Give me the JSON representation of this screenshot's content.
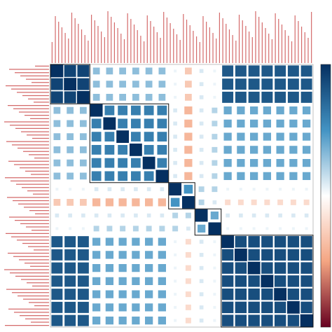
{
  "chart_data": {
    "type": "heatmap",
    "zlim": [
      -1,
      1
    ],
    "colorscale": [
      "#67001f",
      "#f4a582",
      "#ffffff",
      "#4393c3",
      "#053061"
    ],
    "values": [
      [
        1,
        0.9,
        0.9,
        0.3,
        0.3,
        0.3,
        0.3,
        0.3,
        0.3,
        0.05,
        -0.3,
        0.1,
        0.05,
        0.8,
        0.8,
        0.8,
        0.8,
        0.8,
        0.8,
        0.8
      ],
      [
        0.9,
        1,
        0.9,
        0.3,
        0.3,
        0.3,
        0.3,
        0.3,
        0.3,
        0.05,
        -0.3,
        0.1,
        0.05,
        0.8,
        0.8,
        0.8,
        0.8,
        0.8,
        0.8,
        0.8
      ],
      [
        0.9,
        0.9,
        1,
        0.3,
        0.3,
        0.3,
        0.3,
        0.3,
        0.3,
        0.05,
        -0.3,
        0.1,
        0.05,
        0.8,
        0.8,
        0.8,
        0.8,
        0.8,
        0.8,
        0.8
      ],
      [
        0.3,
        0.3,
        0.3,
        1,
        0.6,
        0.6,
        0.6,
        0.6,
        0.6,
        0.1,
        -0.4,
        0.1,
        0.2,
        0.4,
        0.4,
        0.4,
        0.4,
        0.4,
        0.4,
        0.4
      ],
      [
        0.3,
        0.3,
        0.3,
        0.6,
        1,
        0.6,
        0.6,
        0.6,
        0.6,
        0.1,
        -0.4,
        0.1,
        0.2,
        0.4,
        0.4,
        0.4,
        0.4,
        0.4,
        0.4,
        0.4
      ],
      [
        0.3,
        0.3,
        0.3,
        0.6,
        0.6,
        1,
        0.6,
        0.6,
        0.6,
        0.1,
        -0.4,
        0.1,
        0.2,
        0.4,
        0.4,
        0.4,
        0.4,
        0.4,
        0.4,
        0.4
      ],
      [
        0.3,
        0.3,
        0.3,
        0.6,
        0.6,
        0.6,
        1,
        0.6,
        0.6,
        0.1,
        -0.4,
        0.1,
        0.2,
        0.4,
        0.4,
        0.4,
        0.4,
        0.4,
        0.4,
        0.4
      ],
      [
        0.3,
        0.3,
        0.3,
        0.6,
        0.6,
        0.6,
        0.6,
        1,
        0.6,
        0.1,
        -0.4,
        0.1,
        0.2,
        0.4,
        0.4,
        0.4,
        0.4,
        0.4,
        0.4,
        0.4
      ],
      [
        0.3,
        0.3,
        0.3,
        0.6,
        0.6,
        0.6,
        0.6,
        0.6,
        1,
        0.1,
        -0.4,
        0.1,
        0.2,
        0.4,
        0.4,
        0.4,
        0.4,
        0.4,
        0.4,
        0.4
      ],
      [
        0.05,
        0.05,
        0.05,
        0.1,
        0.1,
        0.1,
        0.1,
        0.1,
        0.1,
        1,
        0.5,
        0.2,
        0.2,
        0.05,
        0.05,
        0.05,
        0.05,
        0.05,
        0.05,
        0.05
      ],
      [
        -0.3,
        -0.3,
        -0.3,
        -0.4,
        -0.4,
        -0.4,
        -0.4,
        -0.4,
        -0.4,
        0.5,
        1,
        0.2,
        0.1,
        -0.2,
        -0.2,
        -0.2,
        -0.2,
        -0.2,
        -0.2,
        -0.2
      ],
      [
        0.1,
        0.1,
        0.1,
        0.1,
        0.1,
        0.1,
        0.1,
        0.1,
        0.1,
        0.2,
        0.2,
        1,
        0.4,
        0.1,
        0.1,
        0.1,
        0.1,
        0.1,
        0.1,
        0.1
      ],
      [
        0.05,
        0.05,
        0.05,
        0.2,
        0.2,
        0.2,
        0.2,
        0.2,
        0.2,
        0.2,
        0.1,
        0.4,
        1,
        0.05,
        0.05,
        0.05,
        0.05,
        0.05,
        0.05,
        0.05
      ],
      [
        0.8,
        0.8,
        0.8,
        0.4,
        0.4,
        0.4,
        0.4,
        0.4,
        0.4,
        0.05,
        -0.2,
        0.1,
        0.05,
        1,
        0.85,
        0.85,
        0.85,
        0.85,
        0.85,
        0.85
      ],
      [
        0.8,
        0.8,
        0.8,
        0.4,
        0.4,
        0.4,
        0.4,
        0.4,
        0.4,
        0.05,
        -0.2,
        0.1,
        0.05,
        0.85,
        1,
        0.85,
        0.85,
        0.85,
        0.85,
        0.85
      ],
      [
        0.8,
        0.8,
        0.8,
        0.4,
        0.4,
        0.4,
        0.4,
        0.4,
        0.4,
        0.05,
        -0.2,
        0.1,
        0.05,
        0.85,
        0.85,
        1,
        0.85,
        0.85,
        0.85,
        0.85
      ],
      [
        0.8,
        0.8,
        0.8,
        0.4,
        0.4,
        0.4,
        0.4,
        0.4,
        0.4,
        0.05,
        -0.2,
        0.1,
        0.05,
        0.85,
        0.85,
        0.85,
        1,
        0.85,
        0.85,
        0.85
      ],
      [
        0.8,
        0.8,
        0.8,
        0.4,
        0.4,
        0.4,
        0.4,
        0.4,
        0.4,
        0.05,
        -0.2,
        0.1,
        0.05,
        0.85,
        0.85,
        0.85,
        0.85,
        1,
        0.85,
        0.85
      ],
      [
        0.8,
        0.8,
        0.8,
        0.4,
        0.4,
        0.4,
        0.4,
        0.4,
        0.4,
        0.05,
        -0.2,
        0.1,
        0.05,
        0.85,
        0.85,
        0.85,
        0.85,
        0.85,
        1,
        0.85
      ],
      [
        0.8,
        0.8,
        0.8,
        0.4,
        0.4,
        0.4,
        0.4,
        0.4,
        0.4,
        0.05,
        -0.2,
        0.1,
        0.05,
        0.85,
        0.85,
        0.85,
        0.85,
        0.85,
        0.85,
        1
      ]
    ]
  }
}
